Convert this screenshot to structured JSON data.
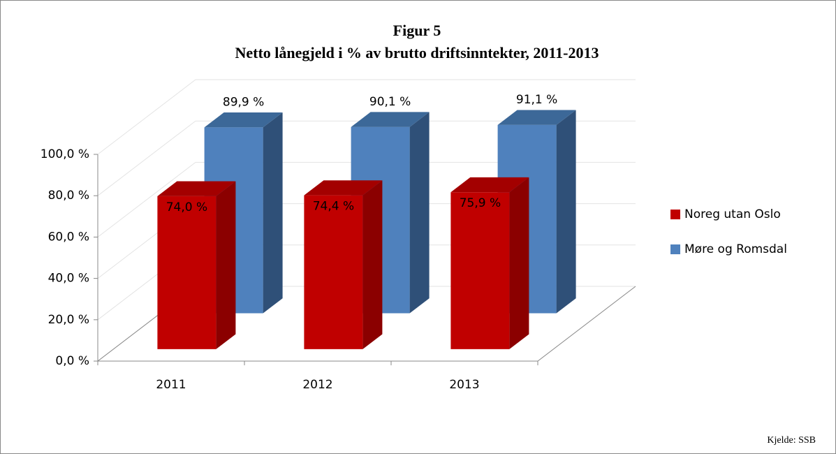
{
  "chart_data": {
    "type": "bar3d",
    "title": "Figur 5",
    "subtitle": "Netto lånegjeld i % av brutto driftsinntekter, 2011-2013",
    "note": "Kjelde: SSB",
    "categories": [
      "2011",
      "2012",
      "2013"
    ],
    "series": [
      {
        "name": "Noreg utan Oslo",
        "color": "#c00000",
        "values": [
          74.0,
          74.4,
          75.9
        ],
        "value_labels": [
          "74,0 %",
          "74,4 %",
          "75,9 %"
        ]
      },
      {
        "name": "Møre og Romsdal",
        "color": "#4f81bd",
        "values": [
          89.9,
          90.1,
          91.1
        ],
        "value_labels": [
          "89,9 %",
          "90,1 %",
          "91,1 %"
        ]
      }
    ],
    "ylim": [
      0,
      100
    ],
    "yticks": [
      {
        "value": 0,
        "label": "0,0 %"
      },
      {
        "value": 20,
        "label": "20,0 %"
      },
      {
        "value": 40,
        "label": "40,0 %"
      },
      {
        "value": 60,
        "label": "60,0 %"
      },
      {
        "value": 80,
        "label": "80,0 %"
      },
      {
        "value": 100,
        "label": "100,0 %"
      }
    ],
    "grid": true,
    "legend": "right"
  }
}
